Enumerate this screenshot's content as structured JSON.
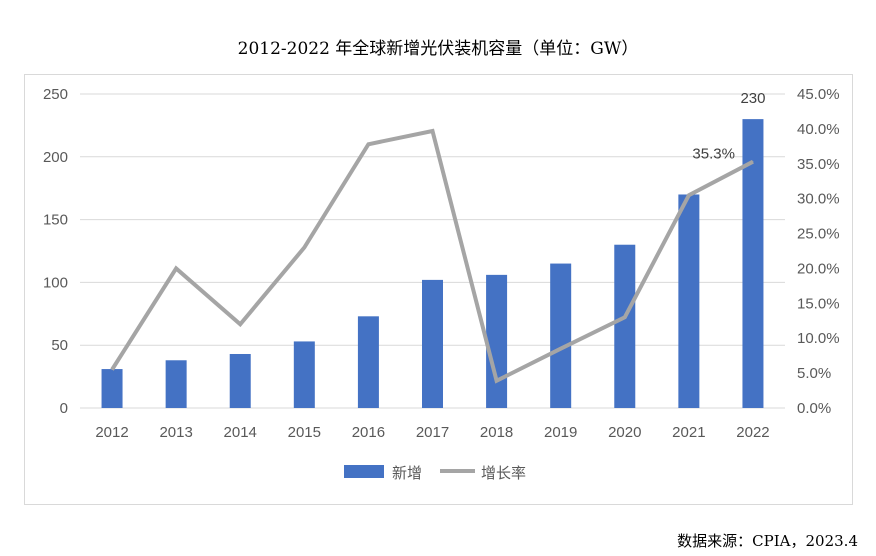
{
  "title": "2012-2022 年全球新增光伏装机容量（单位：GW）",
  "source": "数据来源：CPIA，2023.4",
  "chart_data": {
    "type": "bar",
    "categories": [
      "2012",
      "2013",
      "2014",
      "2015",
      "2016",
      "2017",
      "2018",
      "2019",
      "2020",
      "2021",
      "2022"
    ],
    "series": [
      {
        "name": "新增",
        "type": "bar",
        "axis": "left",
        "color": "#4472C4",
        "values": [
          31,
          38,
          43,
          53,
          73,
          102,
          106,
          115,
          130,
          170,
          230
        ]
      },
      {
        "name": "增长率",
        "type": "line",
        "axis": "right",
        "color": "#A5A5A5",
        "values": [
          5.5,
          20.0,
          12.0,
          23.0,
          37.8,
          39.7,
          3.9,
          8.5,
          13.0,
          30.5,
          35.3
        ]
      }
    ],
    "y_left": {
      "range": [
        0,
        250
      ],
      "ticks": [
        "0",
        "50",
        "100",
        "150",
        "200",
        "250"
      ]
    },
    "y_right": {
      "range": [
        0,
        45
      ],
      "ticks": [
        "0.0%",
        "5.0%",
        "10.0%",
        "15.0%",
        "20.0%",
        "25.0%",
        "30.0%",
        "35.0%",
        "40.0%",
        "45.0%"
      ]
    },
    "data_labels": [
      {
        "series": "新增",
        "category": "2022",
        "text": "230"
      },
      {
        "series": "增长率",
        "category": "2022",
        "text": "35.3%"
      }
    ],
    "grid": "horizontal",
    "legend": "bottom-center"
  }
}
